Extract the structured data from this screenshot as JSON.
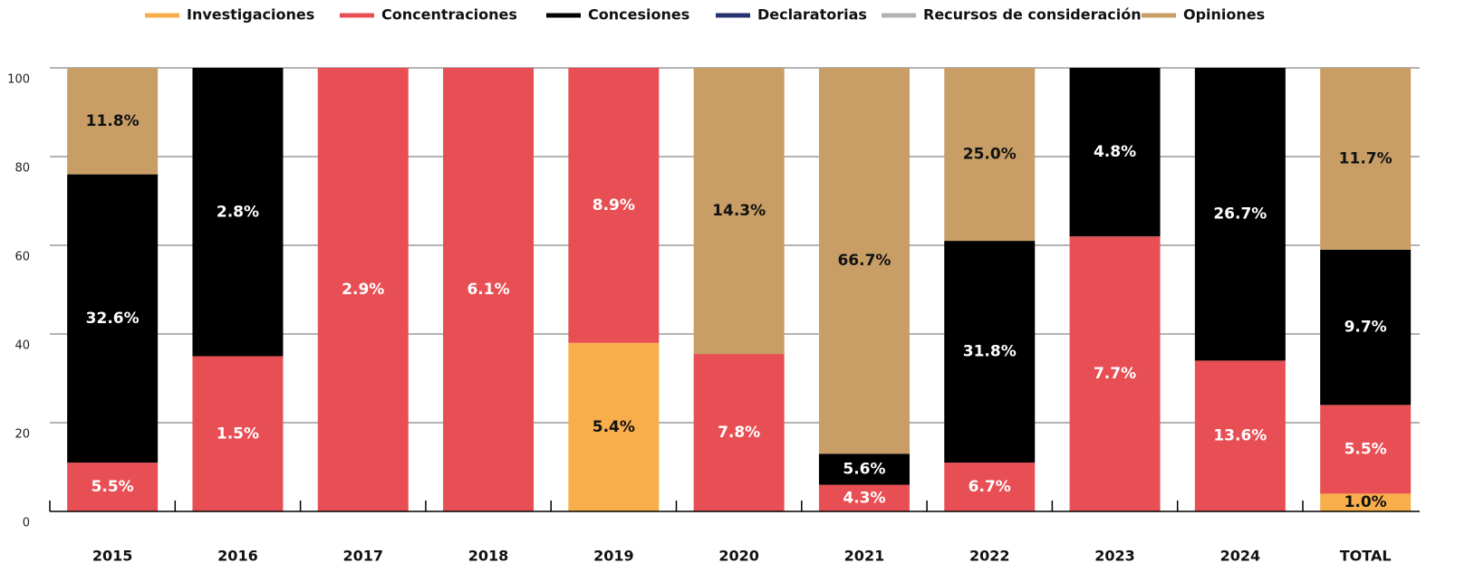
{
  "chart_data": {
    "type": "stacked_bar",
    "categories": [
      "2015",
      "2016",
      "2017",
      "2018",
      "2019",
      "2020",
      "2021",
      "2022",
      "2023",
      "2024",
      "TOTAL"
    ],
    "series": [
      {
        "name": "Investigaciones",
        "color": "#f7ae4b",
        "label_color": "#111111",
        "values": [
          0,
          0,
          0,
          0,
          38,
          0,
          0,
          0,
          0,
          0,
          4
        ],
        "annotations": [
          null,
          null,
          null,
          null,
          "5.4%",
          null,
          null,
          null,
          null,
          null,
          "1.0%"
        ]
      },
      {
        "name": "Concentraciones",
        "color": "#e84f55",
        "label_color": "#ffffff",
        "values": [
          11,
          35,
          100,
          100,
          62,
          35.5,
          6,
          11,
          62,
          34,
          20
        ],
        "annotations": [
          "5.5%",
          "1.5%",
          "2.9%",
          "6.1%",
          "8.9%",
          "7.8%",
          "4.3%",
          "6.7%",
          "7.7%",
          "13.6%",
          "5.5%"
        ]
      },
      {
        "name": "Concesiones",
        "color": "#000000",
        "label_color": "#ffffff",
        "values": [
          65,
          65,
          0,
          0,
          0,
          0,
          7,
          50,
          38,
          66,
          35
        ],
        "annotations": [
          "32.6%",
          "2.8%",
          null,
          null,
          null,
          null,
          "5.6%",
          "31.8%",
          "4.8%",
          "26.7%",
          "9.7%"
        ]
      },
      {
        "name": "Declaratorias",
        "color": "#26336e",
        "label_color": "#ffffff",
        "values": [
          0,
          0,
          0,
          0,
          0,
          0,
          0,
          0,
          0,
          0,
          0
        ]
      },
      {
        "name": "Recursos de consideración",
        "color": "#b3b3b3",
        "label_color": "#111111",
        "values": [
          0,
          0,
          0,
          0,
          0,
          0,
          0,
          0,
          0,
          0,
          0
        ]
      },
      {
        "name": "Opiniones",
        "color": "#c89e66",
        "label_color": "#111111",
        "values": [
          24,
          0,
          0,
          0,
          0,
          64.5,
          87,
          39,
          0,
          0,
          41
        ],
        "annotations": [
          "11.8%",
          null,
          null,
          null,
          null,
          "14.3%",
          "66.7%",
          "25.0%",
          null,
          null,
          "11.7%"
        ]
      }
    ],
    "ylim": [
      0,
      100
    ],
    "yticks": [
      0,
      20,
      40,
      60,
      80,
      100
    ],
    "grid": true,
    "legend": "top"
  }
}
